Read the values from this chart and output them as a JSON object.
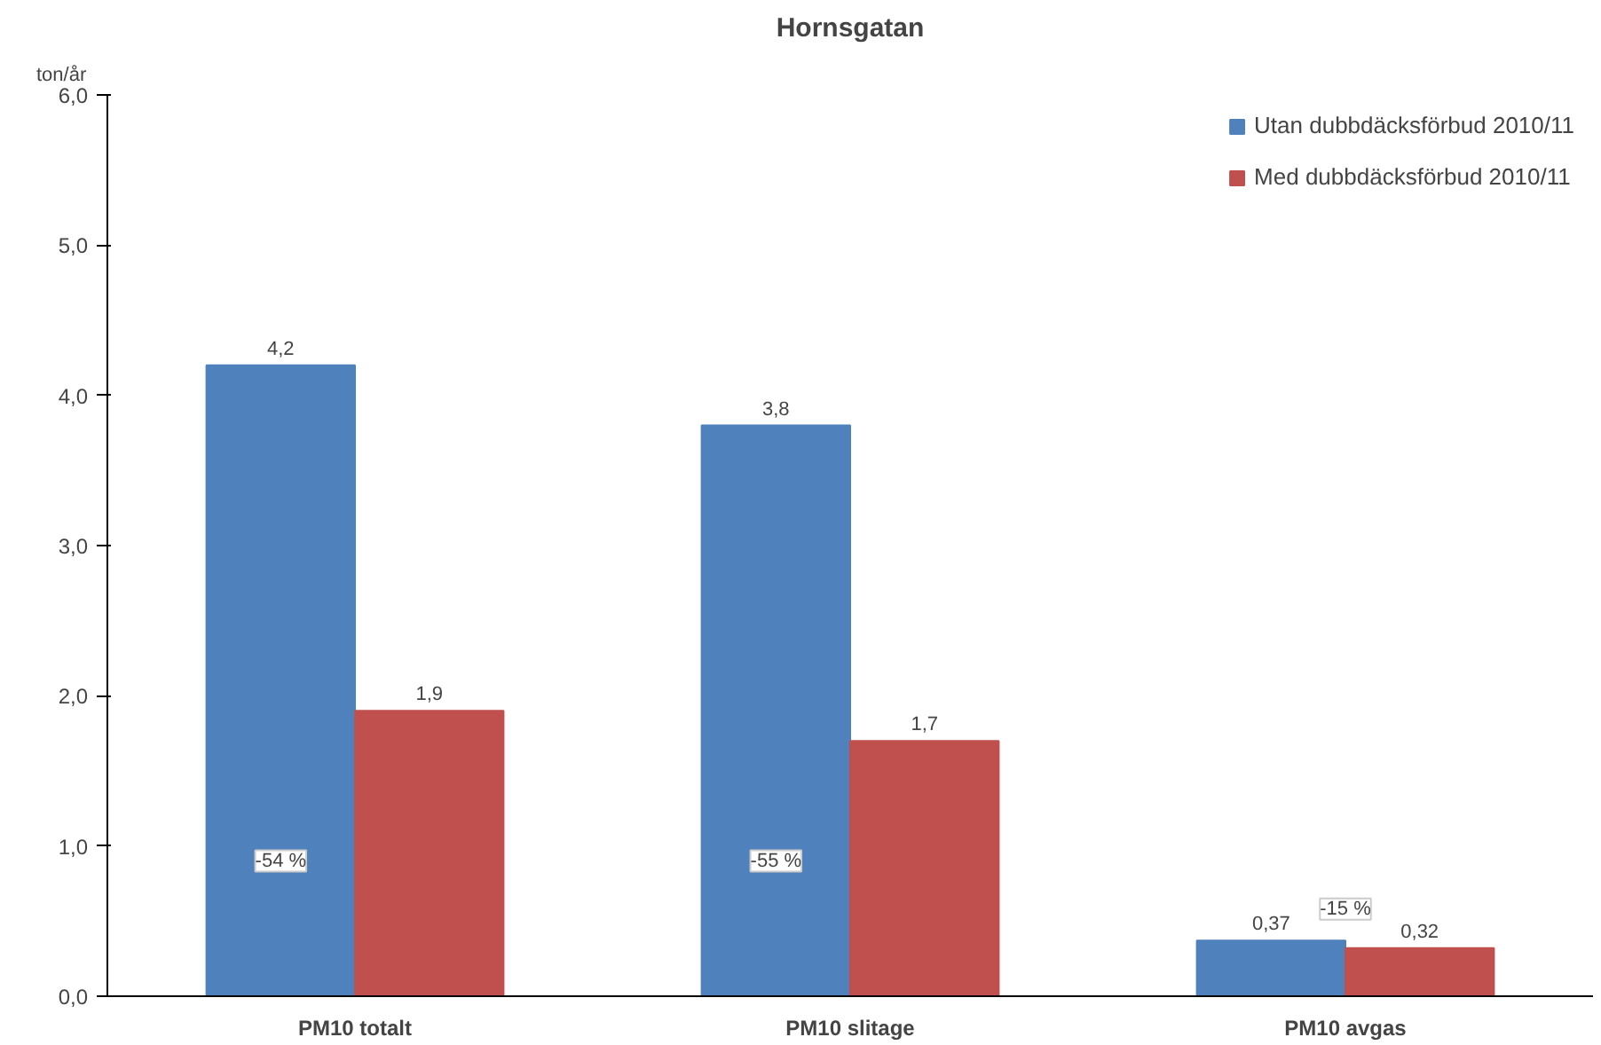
{
  "chart_data": {
    "type": "bar",
    "title": "Hornsgatan",
    "ylabel": "ton/år",
    "categories": [
      "PM10 totalt",
      "PM10 slitage",
      "PM10 avgas"
    ],
    "series": [
      {
        "name": "Utan dubbdäcksförbud 2010/11",
        "color": "#4f81bd",
        "values": [
          4.2,
          3.8,
          0.37
        ],
        "value_labels": [
          "4,2",
          "3,8",
          "0,37"
        ]
      },
      {
        "name": "Med dubbdäcksförbud 2010/11",
        "color": "#c0504d",
        "values": [
          1.9,
          1.7,
          0.32
        ],
        "value_labels": [
          "1,9",
          "1,7",
          "0,32"
        ]
      }
    ],
    "ylim": [
      0,
      6
    ],
    "yticks": [
      {
        "value": 0,
        "label": "0,0"
      },
      {
        "value": 1,
        "label": "1,0"
      },
      {
        "value": 2,
        "label": "2,0"
      },
      {
        "value": 3,
        "label": "3,0"
      },
      {
        "value": 4,
        "label": "4,0"
      },
      {
        "value": 5,
        "label": "5,0"
      },
      {
        "value": 6,
        "label": "6,0"
      }
    ],
    "annotations": [
      {
        "text": "-54 %",
        "x": "PM10 totalt",
        "y": 0.9
      },
      {
        "text": "-55 %",
        "x": "PM10 slitage",
        "y": 0.9
      },
      {
        "text": "-15 %",
        "x": "PM10 avgas",
        "y": 0.58
      }
    ],
    "grid": false,
    "legend": "top right"
  }
}
